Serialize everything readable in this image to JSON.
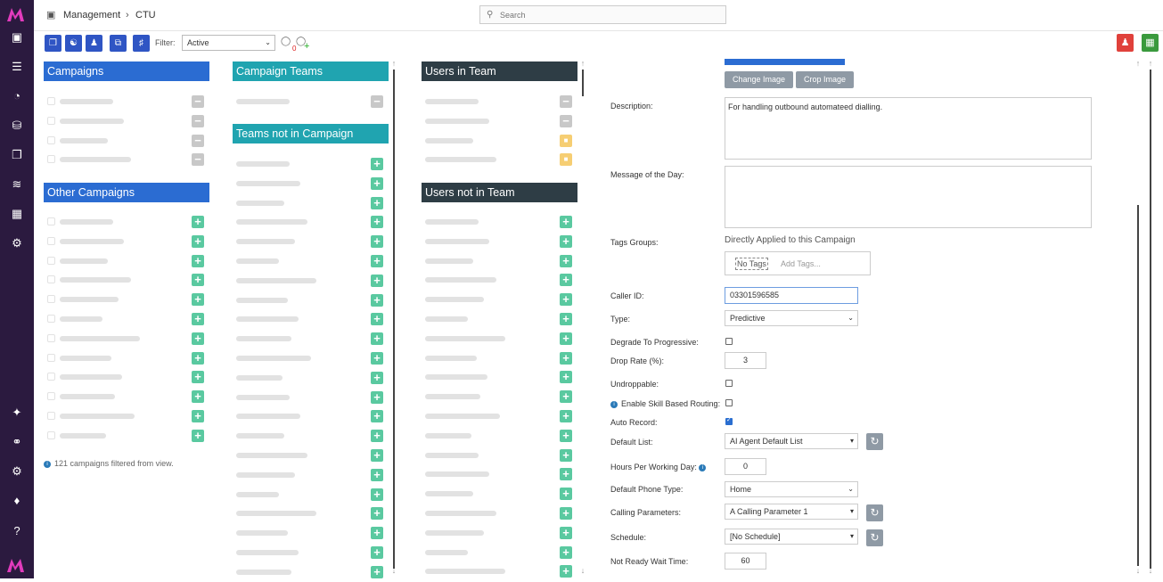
{
  "colors": {
    "sidebar": "#2b1a3f",
    "brand": "#c51ea6",
    "blue": "#2b6cd2",
    "teal": "#20a4b0",
    "dark": "#2e3d45"
  },
  "breadcrumb": {
    "section": "Management",
    "current": "CTU"
  },
  "search": {
    "placeholder": "Search"
  },
  "toolbar": {
    "filter_label": "Filter:",
    "filter_value": "Active",
    "tag_count": "0"
  },
  "columns": {
    "campaigns": {
      "header": "Campaigns",
      "rows": 4
    },
    "other_campaigns": {
      "header": "Other Campaigns",
      "rows": 12,
      "note_count": "121",
      "note_text": "campaigns filtered from view."
    },
    "campaign_teams": {
      "header": "Campaign Teams",
      "rows": 1
    },
    "teams_not_in_campaign": {
      "header": "Teams not in Campaign",
      "rows": 22
    },
    "users_in_team": {
      "header": "Users in Team",
      "rows": 4
    },
    "users_not_in_team": {
      "header": "Users not in Team",
      "rows": 19
    }
  },
  "form": {
    "change_image": "Change Image",
    "crop_image": "Crop Image",
    "description_label": "Description:",
    "description_value": "For handling outbound automateed dialling.",
    "motd_label": "Message of the Day:",
    "tags_groups_label": "Tags Groups:",
    "tags_applied_text": "Directly Applied to this Campaign",
    "no_tags": "No Tags",
    "add_tags_placeholder": "Add Tags...",
    "caller_id_label": "Caller ID:",
    "caller_id_value": "03301596585",
    "type_label": "Type:",
    "type_value": "Predictive",
    "degrade_label": "Degrade To Progressive:",
    "drop_rate_label": "Drop Rate (%):",
    "drop_rate_value": "3",
    "undroppable_label": "Undroppable:",
    "skill_routing_label": "Enable Skill Based Routing:",
    "auto_record_label": "Auto Record:",
    "default_list_label": "Default List:",
    "default_list_value": "AI Agent Default List",
    "hours_label": "Hours Per Working Day:",
    "hours_value": "0",
    "phone_type_label": "Default Phone Type:",
    "phone_type_value": "Home",
    "calling_params_label": "Calling Parameters:",
    "calling_params_value": "A Calling Parameter 1",
    "schedule_label": "Schedule:",
    "schedule_value": "[No Schedule]",
    "not_ready_label": "Not Ready Wait Time:",
    "not_ready_value": "60"
  }
}
